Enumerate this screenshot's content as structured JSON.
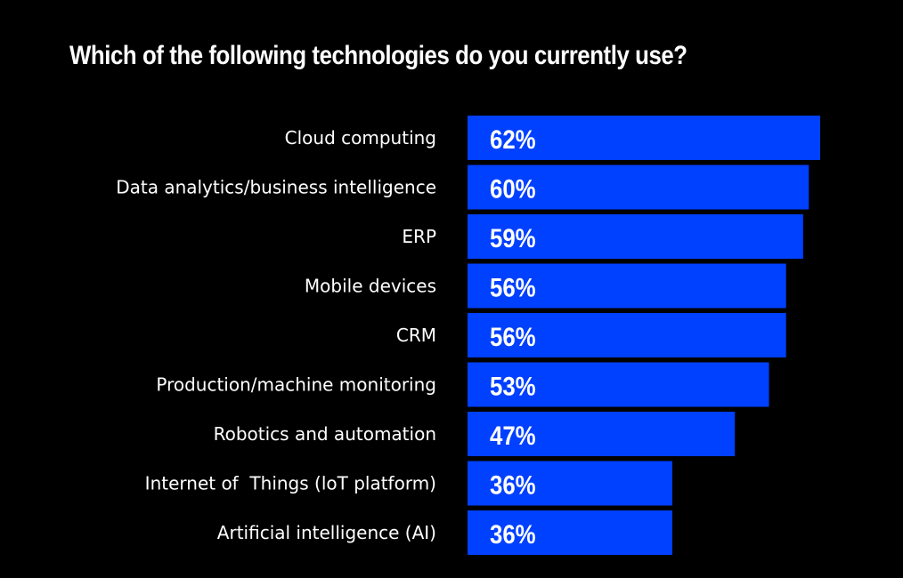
{
  "chart_data": {
    "type": "bar",
    "orientation": "horizontal",
    "title": "Which of the following technologies do you currently use?",
    "categories": [
      "Cloud computing",
      "Data analytics/business intelligence",
      "ERP",
      "Mobile devices",
      "CRM",
      "Production/machine monitoring",
      "Robotics and automation",
      "Internet of  Things (loT platform)",
      "Artificial intelligence (AI)"
    ],
    "values": [
      62,
      60,
      59,
      56,
      56,
      53,
      47,
      36,
      36
    ],
    "value_labels": [
      "62%",
      "60%",
      "59%",
      "56%",
      "56%",
      "53%",
      "47%",
      "36%",
      "36%"
    ],
    "xlim": [
      0,
      62
    ],
    "grid": false,
    "legend": "none",
    "colors": {
      "background": "#000000",
      "bar": "#0040ff",
      "text": "#ffffff"
    }
  }
}
